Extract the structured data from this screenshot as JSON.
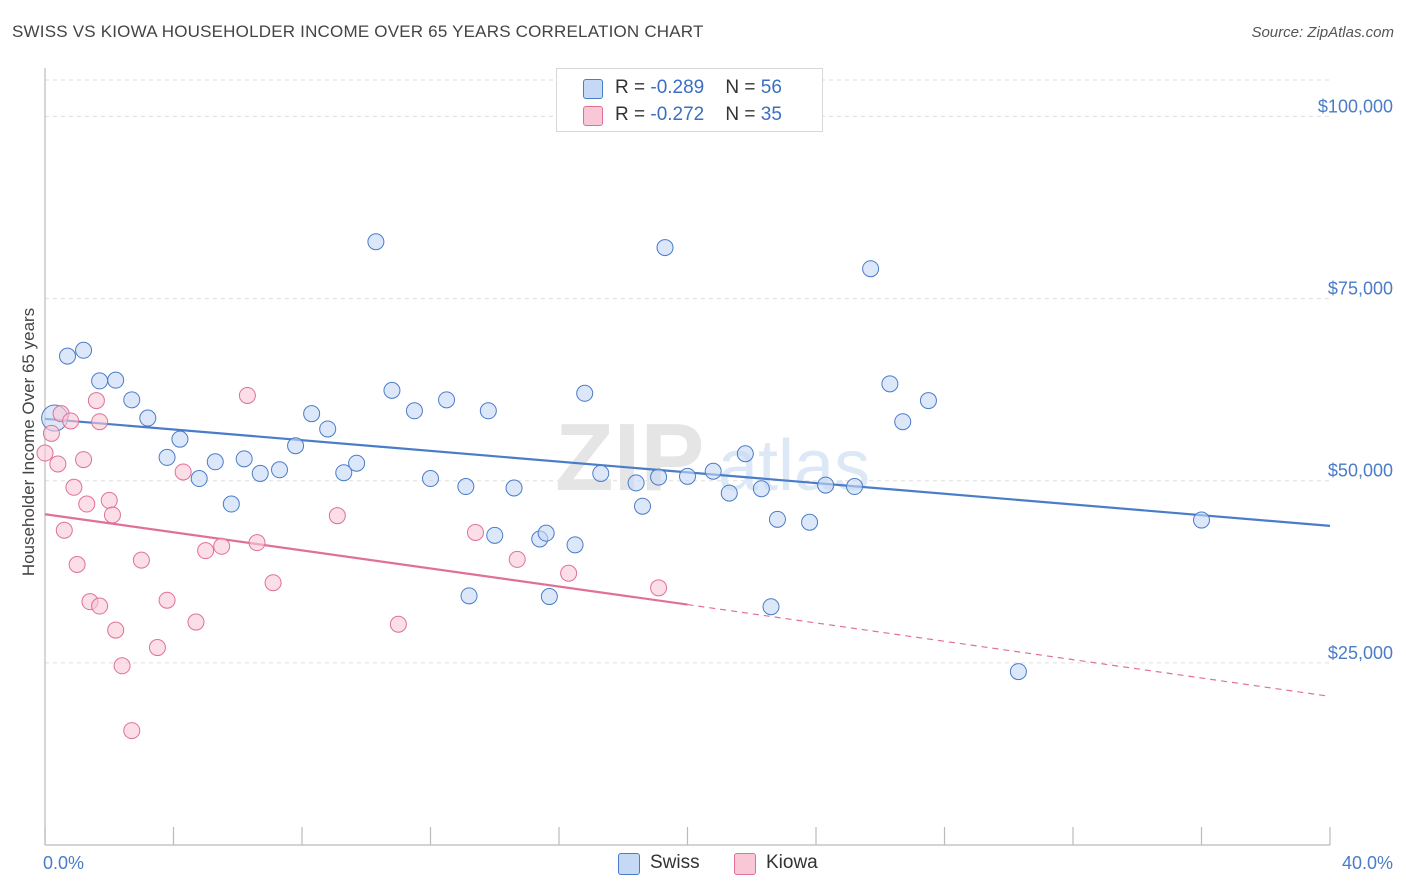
{
  "title": "SWISS VS KIOWA HOUSEHOLDER INCOME OVER 65 YEARS CORRELATION CHART",
  "source": "Source: ZipAtlas.com",
  "watermark": "ZIPatlas",
  "colors": {
    "swiss": "#4a7cc9",
    "kiowa": "#e07099",
    "swiss_fill": "#c5d9f5",
    "kiowa_fill": "#f8c8d6"
  },
  "legend": {
    "swiss": {
      "r_label": "R = ",
      "r_value": "-0.289",
      "n_label": "N = ",
      "n_value": "56"
    },
    "kiowa": {
      "r_label": "R = ",
      "r_value": "-0.272",
      "n_label": "N = ",
      "n_value": "35"
    }
  },
  "bottom_legend": {
    "swiss": "Swiss",
    "kiowa": "Kiowa"
  },
  "chart_data": {
    "type": "scatter",
    "ylabel": "Householder Income Over 65 years",
    "xlim": [
      0,
      40
    ],
    "ylim": [
      0,
      105000
    ],
    "x_tick_labels": [
      {
        "x": 0,
        "label": "0.0%"
      },
      {
        "x": 40,
        "label": "40.0%"
      }
    ],
    "y_tick_labels": [
      {
        "y": 25000,
        "label": "$25,000"
      },
      {
        "y": 50000,
        "label": "$50,000"
      },
      {
        "y": 75000,
        "label": "$75,000"
      },
      {
        "y": 100000,
        "label": "$100,000"
      }
    ],
    "grid": true,
    "legend_placement": "top-center",
    "series": [
      {
        "name": "Swiss",
        "points": [
          [
            0.3,
            58600
          ],
          [
            0.7,
            67100
          ],
          [
            1.2,
            67900
          ],
          [
            1.7,
            63700
          ],
          [
            2.2,
            63800
          ],
          [
            2.7,
            61100
          ],
          [
            3.2,
            58600
          ],
          [
            3.8,
            53200
          ],
          [
            4.2,
            55700
          ],
          [
            4.8,
            50300
          ],
          [
            5.3,
            52600
          ],
          [
            5.8,
            46800
          ],
          [
            6.2,
            53000
          ],
          [
            6.7,
            51000
          ],
          [
            7.3,
            51500
          ],
          [
            7.8,
            54800
          ],
          [
            8.3,
            59200
          ],
          [
            8.8,
            57100
          ],
          [
            9.3,
            51100
          ],
          [
            9.7,
            52400
          ],
          [
            10.3,
            82800
          ],
          [
            10.8,
            62400
          ],
          [
            11.5,
            59600
          ],
          [
            12.0,
            50300
          ],
          [
            12.5,
            61100
          ],
          [
            13.1,
            49200
          ],
          [
            13.8,
            59600
          ],
          [
            14.0,
            42500
          ],
          [
            14.6,
            49000
          ],
          [
            15.4,
            42000
          ],
          [
            15.6,
            42800
          ],
          [
            15.7,
            34100
          ],
          [
            16.5,
            41200
          ],
          [
            16.8,
            62000
          ],
          [
            17.3,
            51000
          ],
          [
            18.4,
            49700
          ],
          [
            18.6,
            46500
          ],
          [
            19.1,
            50500
          ],
          [
            19.3,
            82000
          ],
          [
            20.0,
            50600
          ],
          [
            20.8,
            51300
          ],
          [
            21.3,
            48300
          ],
          [
            21.8,
            53700
          ],
          [
            22.3,
            48900
          ],
          [
            22.6,
            32700
          ],
          [
            22.8,
            44700
          ],
          [
            23.8,
            44300
          ],
          [
            24.3,
            49400
          ],
          [
            25.2,
            49200
          ],
          [
            25.7,
            79100
          ],
          [
            26.3,
            63300
          ],
          [
            26.7,
            58100
          ],
          [
            27.5,
            61000
          ],
          [
            30.3,
            23800
          ],
          [
            36.0,
            44600
          ],
          [
            13.2,
            34200
          ]
        ],
        "trend": {
          "x": [
            0,
            40
          ],
          "y": [
            58500,
            43800
          ]
        }
      },
      {
        "name": "Kiowa",
        "points": [
          [
            0.0,
            53800
          ],
          [
            0.2,
            56500
          ],
          [
            0.4,
            52300
          ],
          [
            0.5,
            59200
          ],
          [
            0.6,
            43200
          ],
          [
            0.8,
            58200
          ],
          [
            0.9,
            49100
          ],
          [
            1.0,
            38500
          ],
          [
            1.2,
            52900
          ],
          [
            1.3,
            46800
          ],
          [
            1.4,
            33400
          ],
          [
            1.6,
            61000
          ],
          [
            1.7,
            58100
          ],
          [
            1.7,
            32800
          ],
          [
            2.0,
            47300
          ],
          [
            2.1,
            45300
          ],
          [
            2.2,
            29500
          ],
          [
            2.4,
            24600
          ],
          [
            2.7,
            15700
          ],
          [
            3.0,
            39100
          ],
          [
            3.5,
            27100
          ],
          [
            3.8,
            33600
          ],
          [
            4.3,
            51200
          ],
          [
            4.7,
            30600
          ],
          [
            5.0,
            40400
          ],
          [
            5.5,
            41000
          ],
          [
            6.3,
            61700
          ],
          [
            6.6,
            41500
          ],
          [
            7.1,
            36000
          ],
          [
            9.1,
            45200
          ],
          [
            11.0,
            30300
          ],
          [
            13.4,
            42900
          ],
          [
            14.7,
            39200
          ],
          [
            16.3,
            37300
          ],
          [
            19.1,
            35300
          ]
        ],
        "trend": {
          "x": [
            0,
            20
          ],
          "y": [
            45400,
            33000
          ]
        },
        "trend_dashed": {
          "x": [
            20,
            40
          ],
          "y": [
            33000,
            20400
          ]
        }
      }
    ]
  }
}
